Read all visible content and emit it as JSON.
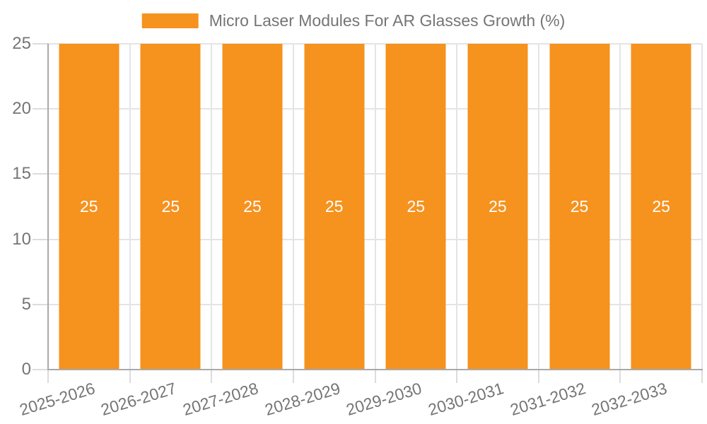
{
  "legend": {
    "label": "Micro Laser Modules For AR Glasses Growth (%)"
  },
  "chart_data": {
    "type": "bar",
    "title": "Micro Laser Modules For AR Glasses Growth (%)",
    "categories": [
      "2025-2026",
      "2026-2027",
      "2027-2028",
      "2028-2029",
      "2029-2030",
      "2030-2031",
      "2031-2032",
      "2032-2033"
    ],
    "values": [
      25,
      25,
      25,
      25,
      25,
      25,
      25,
      25
    ],
    "series": [
      {
        "name": "Micro Laser Modules For AR Glasses Growth (%)",
        "values": [
          25,
          25,
          25,
          25,
          25,
          25,
          25,
          25
        ]
      }
    ],
    "xlabel": "",
    "ylabel": "",
    "ylim": [
      0,
      25
    ],
    "yticks": [
      0,
      5,
      10,
      15,
      20,
      25
    ],
    "grid": true,
    "legend_position": "top",
    "x_label_rotation_deg": -17,
    "colors": {
      "bar": "#F6921E",
      "bar_value_text": "#FFFFFF",
      "axis_text": "#757575",
      "grid_line": "#E4E4E4",
      "tick_line": "#DCDCDC",
      "axis_line": "#A9A9A9",
      "background": "#FFFFFF"
    }
  }
}
